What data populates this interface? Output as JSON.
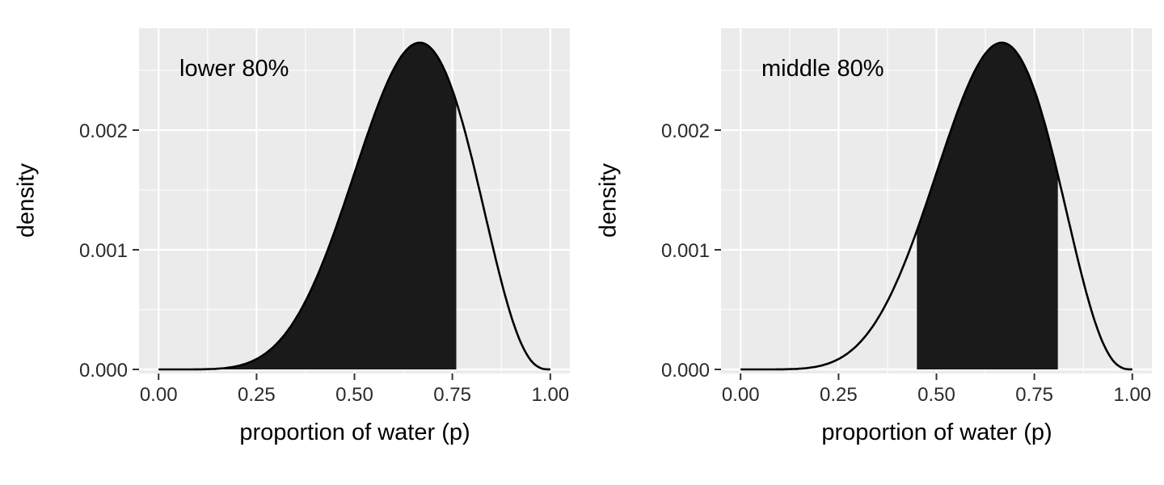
{
  "style": {
    "page_bg": "#FFFFFF",
    "panel_bg": "#EBEBEB",
    "grid_major_color": "#FFFFFF",
    "grid_minor_color": "#FFFFFF",
    "curve_color": "#000000",
    "shade_fill_color": "#1A1A1A",
    "axis_tick_color": "#333333",
    "tick_label_color": "#2B2B2B",
    "axis_title_color": "#000000"
  },
  "chart_data": [
    {
      "type": "area",
      "annotation": "lower 80%",
      "xlabel": "proportion of water (p)",
      "ylabel": "density",
      "xlim": [
        0,
        1
      ],
      "ylim": [
        0,
        0.00285
      ],
      "grid": "on",
      "legend": "none",
      "x_ticks": [
        0,
        0.25,
        0.5,
        0.75,
        1
      ],
      "x_tick_labels": [
        "0.00",
        "0.25",
        "0.50",
        "0.75",
        "1.00"
      ],
      "x_minor_ticks": [
        0.125,
        0.375,
        0.625,
        0.875
      ],
      "y_ticks": [
        0,
        0.001,
        0.002
      ],
      "y_tick_labels": [
        "0.000",
        "0.001",
        "0.002"
      ],
      "y_minor_ticks": [
        0.0005,
        0.0015,
        0.0025
      ],
      "shade_interval": [
        0,
        0.76
      ],
      "curve": {
        "x": [
          0,
          0.025,
          0.05,
          0.075,
          0.1,
          0.125,
          0.15,
          0.175,
          0.2,
          0.225,
          0.25,
          0.275,
          0.3,
          0.325,
          0.35,
          0.375,
          0.4,
          0.425,
          0.45,
          0.475,
          0.5,
          0.525,
          0.55,
          0.575,
          0.6,
          0.625,
          0.65,
          0.675,
          0.7,
          0.725,
          0.75,
          0.775,
          0.8,
          0.825,
          0.85,
          0.875,
          0.9,
          0.925,
          0.95,
          0.975,
          1
        ],
        "y": [
          0,
          0,
          0,
          1e-07,
          6e-07,
          2.1e-06,
          5.9e-06,
          1.35e-05,
          2.75e-05,
          5.07e-05,
          8.65e-05,
          0.0001385,
          0.00021,
          0.0003044,
          0.0004241,
          0.0005703,
          0.0007432,
          0.0009411,
          0.0011605,
          0.0013961,
          0.0016406,
          0.001885,
          0.0021188,
          0.0023305,
          0.0025082,
          0.0026403,
          0.0027162,
          0.0027274,
          0.0026683,
          0.0025369,
          0.002336,
          0.0020732,
          0.0017616,
          0.0014177,
          0.0010692,
          0.0007363,
          0.0004464,
          0.000222,
          7.72e-05,
          1.13e-05,
          0
        ]
      }
    },
    {
      "type": "area",
      "annotation": "middle 80%",
      "xlabel": "proportion of water (p)",
      "ylabel": "density",
      "xlim": [
        0,
        1
      ],
      "ylim": [
        0,
        0.00285
      ],
      "grid": "on",
      "legend": "none",
      "x_ticks": [
        0,
        0.25,
        0.5,
        0.75,
        1
      ],
      "x_tick_labels": [
        "0.00",
        "0.25",
        "0.50",
        "0.75",
        "1.00"
      ],
      "x_minor_ticks": [
        0.125,
        0.375,
        0.625,
        0.875
      ],
      "y_ticks": [
        0,
        0.001,
        0.002
      ],
      "y_tick_labels": [
        "0.000",
        "0.001",
        "0.002"
      ],
      "y_minor_ticks": [
        0.0005,
        0.0015,
        0.0025
      ],
      "shade_interval": [
        0.45,
        0.81
      ],
      "curve": {
        "x": [
          0,
          0.025,
          0.05,
          0.075,
          0.1,
          0.125,
          0.15,
          0.175,
          0.2,
          0.225,
          0.25,
          0.275,
          0.3,
          0.325,
          0.35,
          0.375,
          0.4,
          0.425,
          0.45,
          0.475,
          0.5,
          0.525,
          0.55,
          0.575,
          0.6,
          0.625,
          0.65,
          0.675,
          0.7,
          0.725,
          0.75,
          0.775,
          0.8,
          0.825,
          0.85,
          0.875,
          0.9,
          0.925,
          0.95,
          0.975,
          1
        ],
        "y": [
          0,
          0,
          0,
          1e-07,
          6e-07,
          2.1e-06,
          5.9e-06,
          1.35e-05,
          2.75e-05,
          5.07e-05,
          8.65e-05,
          0.0001385,
          0.00021,
          0.0003044,
          0.0004241,
          0.0005703,
          0.0007432,
          0.0009411,
          0.0011605,
          0.0013961,
          0.0016406,
          0.001885,
          0.0021188,
          0.0023305,
          0.0025082,
          0.0026403,
          0.0027162,
          0.0027274,
          0.0026683,
          0.0025369,
          0.002336,
          0.0020732,
          0.0017616,
          0.0014177,
          0.0010692,
          0.0007363,
          0.0004464,
          0.000222,
          7.72e-05,
          1.13e-05,
          0
        ]
      }
    }
  ]
}
